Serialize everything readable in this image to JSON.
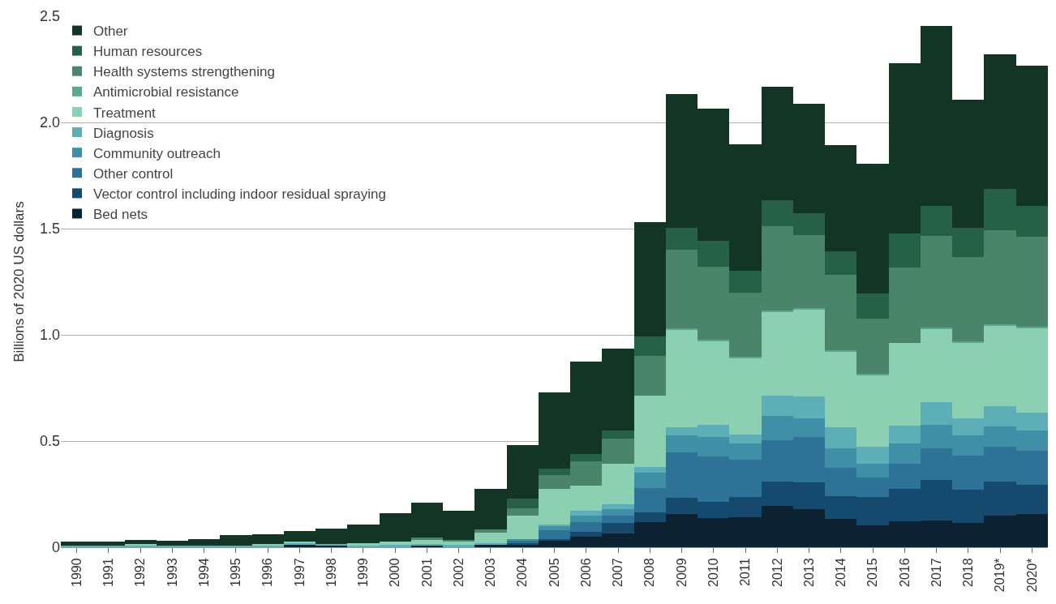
{
  "chart_data": {
    "type": "bar",
    "stacked": true,
    "ylabel": "Billions of 2020 US dollars",
    "categories": [
      "1990",
      "1991",
      "1992",
      "1993",
      "1994",
      "1995",
      "1996",
      "1997",
      "1998",
      "1999",
      "2000",
      "2001",
      "2002",
      "2003",
      "2004",
      "2005",
      "2006",
      "2007",
      "2008",
      "2009",
      "2010",
      "2011",
      "2012",
      "2013",
      "2014",
      "2015",
      "2016",
      "2017",
      "2018",
      "2019*",
      "2020*"
    ],
    "ylim": [
      0,
      2.5
    ],
    "yticks": [
      0,
      0.5,
      {
        "value": 1,
        "label": "1.0"
      },
      1.5,
      {
        "value": 2,
        "label": "2.0"
      },
      2.5
    ],
    "grid": "y",
    "legend": "top left",
    "series": [
      {
        "name": "Bed nets",
        "color": "#0d2231",
        "values": [
          0,
          0,
          0,
          0,
          0,
          0,
          0,
          0.01,
          0.008,
          0,
          0,
          0.008,
          0,
          0.01,
          0.012,
          0.03,
          0.051,
          0.065,
          0.12,
          0.156,
          0.137,
          0.141,
          0.194,
          0.179,
          0.133,
          0.103,
          0.122,
          0.125,
          0.114,
          0.148,
          0.156
        ]
      },
      {
        "name": "Vector control including indoor residual spraying",
        "color": "#15496e",
        "values": [
          0,
          0,
          0,
          0,
          0,
          0,
          0,
          0,
          0,
          0,
          0,
          0,
          0,
          0,
          0.008,
          0.008,
          0.022,
          0.049,
          0.044,
          0.076,
          0.076,
          0.095,
          0.114,
          0.125,
          0.107,
          0.133,
          0.152,
          0.191,
          0.156,
          0.16,
          0.137
        ]
      },
      {
        "name": "Other control",
        "color": "#2e7397",
        "values": [
          0,
          0,
          0,
          0,
          0,
          0,
          0,
          0,
          0,
          0,
          0,
          0,
          0,
          0,
          0.01,
          0.044,
          0.047,
          0.033,
          0.114,
          0.213,
          0.213,
          0.175,
          0.194,
          0.217,
          0.133,
          0.091,
          0.118,
          0.148,
          0.16,
          0.167,
          0.163
        ]
      },
      {
        "name": "Community outreach",
        "color": "#3f8fa6",
        "values": [
          0,
          0,
          0,
          0,
          0,
          0,
          0,
          0,
          0,
          0,
          0,
          0,
          0,
          0,
          0.008,
          0.018,
          0.028,
          0.031,
          0.073,
          0.083,
          0.095,
          0.079,
          0.118,
          0.087,
          0.091,
          0.068,
          0.095,
          0.114,
          0.095,
          0.095,
          0.095
        ]
      },
      {
        "name": "Diagnosis",
        "color": "#5eaeb8",
        "values": [
          0.008,
          0.008,
          0.008,
          0.008,
          0.008,
          0.008,
          0.008,
          0.008,
          0.008,
          0.008,
          0.01,
          0.008,
          0.01,
          0.01,
          0,
          0.008,
          0.025,
          0.024,
          0.026,
          0.038,
          0.057,
          0.042,
          0.095,
          0.103,
          0.099,
          0.08,
          0.087,
          0.106,
          0.08,
          0.095,
          0.084
        ]
      },
      {
        "name": "Treatment",
        "color": "#8cd0b3",
        "values": [
          0,
          0,
          0.008,
          0,
          0,
          0,
          0.008,
          0.01,
          0,
          0.01,
          0.016,
          0.02,
          0.018,
          0.048,
          0.11,
          0.166,
          0.117,
          0.191,
          0.335,
          0.459,
          0.393,
          0.36,
          0.395,
          0.409,
          0.36,
          0.337,
          0.388,
          0.343,
          0.36,
          0.377,
          0.399
        ]
      },
      {
        "name": "Antimicrobial resistance",
        "color": "#5aa98a",
        "values": [
          0,
          0,
          0,
          0,
          0,
          0,
          0,
          0,
          0,
          0,
          0,
          0,
          0,
          0,
          0,
          0,
          0,
          0,
          0,
          0.005,
          0.006,
          0.006,
          0.004,
          0.006,
          0.004,
          0.004,
          0,
          0.006,
          0.004,
          0.006,
          0.004
        ]
      },
      {
        "name": "Health systems strengthening",
        "color": "#4a846b",
        "values": [
          0,
          0,
          0,
          0,
          0,
          0,
          0,
          0,
          0,
          0,
          0,
          0.01,
          0.008,
          0.017,
          0.035,
          0.065,
          0.113,
          0.117,
          0.19,
          0.37,
          0.342,
          0.301,
          0.399,
          0.345,
          0.354,
          0.26,
          0.354,
          0.431,
          0.396,
          0.446,
          0.422
        ]
      },
      {
        "name": "Human resources",
        "color": "#256047",
        "values": [
          0,
          0,
          0,
          0,
          0,
          0,
          0,
          0,
          0,
          0,
          0,
          0,
          0,
          0,
          0.046,
          0.031,
          0.035,
          0.038,
          0.09,
          0.103,
          0.122,
          0.101,
          0.122,
          0.103,
          0.111,
          0.118,
          0.163,
          0.141,
          0.137,
          0.194,
          0.145
        ]
      },
      {
        "name": "Other",
        "color": "#133525",
        "values": [
          0.018,
          0.018,
          0.019,
          0.023,
          0.03,
          0.048,
          0.045,
          0.047,
          0.071,
          0.088,
          0.135,
          0.163,
          0.135,
          0.189,
          0.251,
          0.36,
          0.435,
          0.386,
          0.537,
          0.631,
          0.624,
          0.597,
          0.532,
          0.513,
          0.502,
          0.612,
          0.799,
          0.851,
          0.604,
          0.631,
          0.661
        ]
      }
    ]
  }
}
